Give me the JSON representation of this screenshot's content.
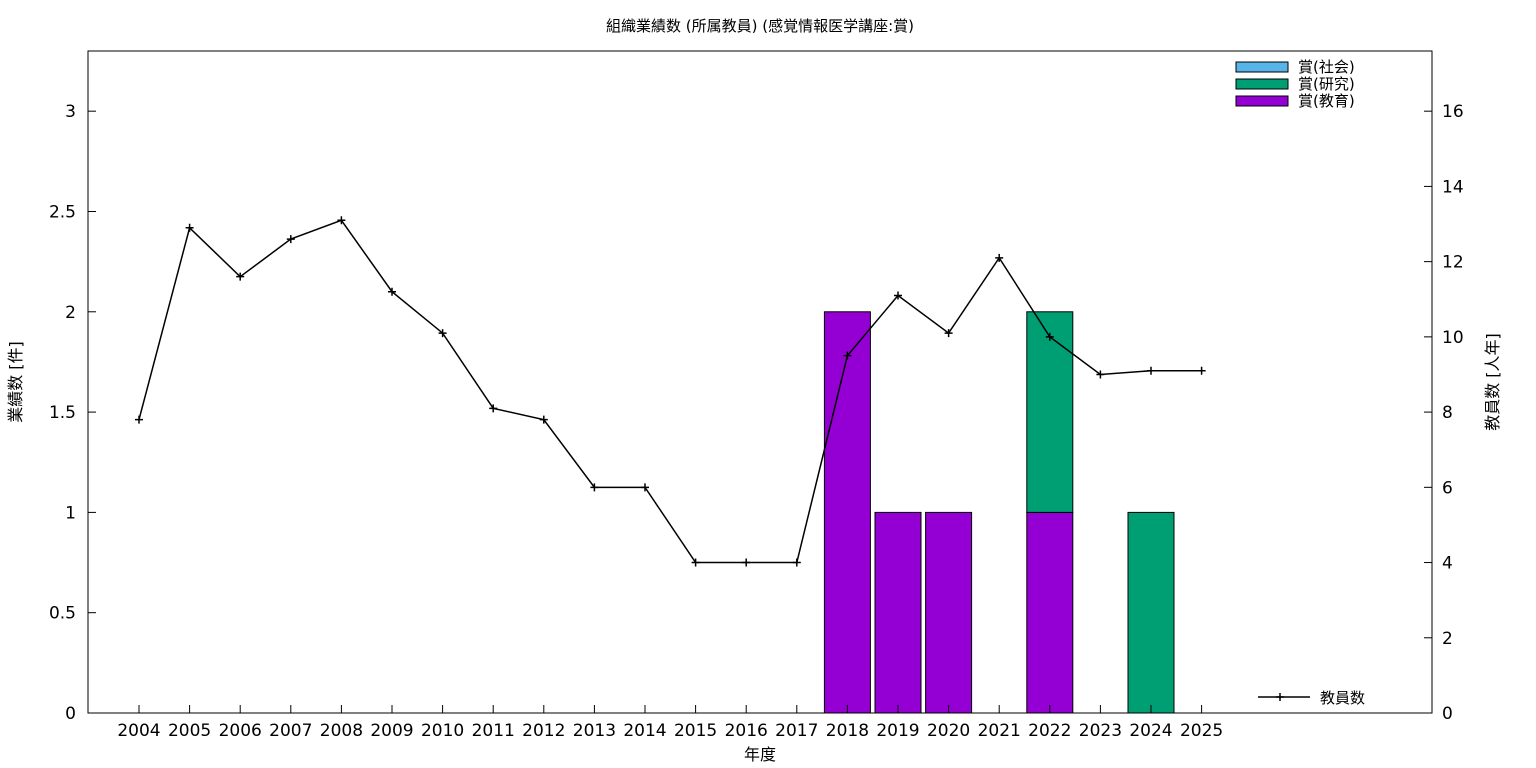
{
  "chart_data": {
    "type": "bar",
    "title": "組織業績数 (所属教員) (感覚情報医学講座:賞)",
    "xlabel": "年度",
    "ylabel": "業績数 [件]",
    "y2label": "教員数 [人年]",
    "categories": [
      "2004",
      "2005",
      "2006",
      "2007",
      "2008",
      "2009",
      "2010",
      "2011",
      "2012",
      "2013",
      "2014",
      "2015",
      "2016",
      "2017",
      "2018",
      "2019",
      "2020",
      "2021",
      "2022",
      "2023",
      "2024",
      "2025"
    ],
    "ylim": [
      0,
      3.3
    ],
    "yticks": [
      "0",
      "0.5",
      "1",
      "1.5",
      "2",
      "2.5",
      "3"
    ],
    "y2lim": [
      0,
      17.6
    ],
    "y2ticks": [
      "0",
      "2",
      "4",
      "6",
      "8",
      "10",
      "12",
      "14",
      "16"
    ],
    "stacked": true,
    "series": [
      {
        "name": "賞(教育)",
        "color": "#9400d3",
        "values": [
          0,
          0,
          0,
          0,
          0,
          0,
          0,
          0,
          0,
          0,
          0,
          0,
          0,
          0,
          2,
          1,
          1,
          0,
          1,
          0,
          0,
          0
        ]
      },
      {
        "name": "賞(研究)",
        "color": "#009e73",
        "values": [
          0,
          0,
          0,
          0,
          0,
          0,
          0,
          0,
          0,
          0,
          0,
          0,
          0,
          0,
          0,
          0,
          0,
          0,
          1,
          0,
          1,
          0
        ]
      },
      {
        "name": "賞(社会)",
        "color": "#56b4e9",
        "values": [
          0,
          0,
          0,
          0,
          0,
          0,
          0,
          0,
          0,
          0,
          0,
          0,
          0,
          0,
          0,
          0,
          0,
          0,
          0,
          0,
          0,
          0
        ]
      }
    ],
    "line_series": {
      "name": "教員数",
      "axis": "y2",
      "color": "#000000",
      "values": [
        7.8,
        12.9,
        11.6,
        12.6,
        13.1,
        11.2,
        10.1,
        8.1,
        7.8,
        6.0,
        6.0,
        4.0,
        4.0,
        4.0,
        9.5,
        11.1,
        10.1,
        12.1,
        10.0,
        9.0,
        9.1,
        9.1
      ]
    },
    "legend_order": [
      "賞(社会)",
      "賞(研究)",
      "賞(教育)"
    ],
    "legend_placement": "top-right",
    "line_legend_placement": "bottom-right",
    "grid": false
  }
}
